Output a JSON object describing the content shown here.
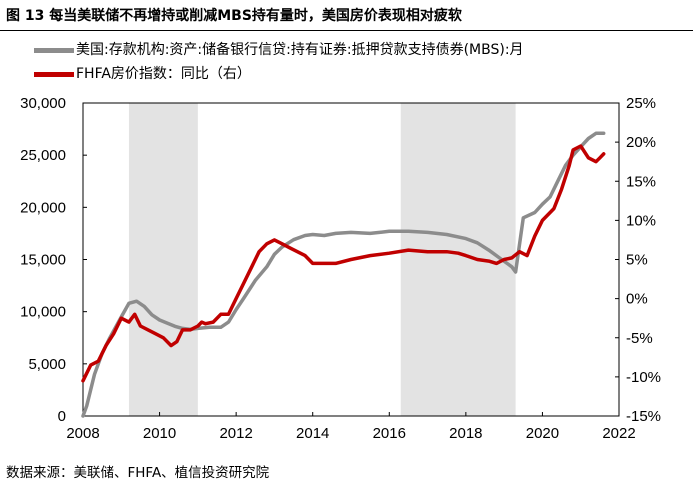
{
  "title": "图 13 每当美联储不再增持或削减MBS持有量时，美国房价表现相对疲软",
  "source": "数据来源：美联储、FHFA、植信投资研究院",
  "colors": {
    "mbs": "#8c8c8c",
    "fhfa": "#c00000",
    "recession_shading": "#e3e3e3"
  },
  "chart_data": {
    "type": "line",
    "title": "图 13 每当美联储不再增持或削减MBS持有量时，美国房价表现相对疲软",
    "x_ticks": [
      "2008",
      "2010",
      "2012",
      "2014",
      "2016",
      "2018",
      "2020",
      "2022"
    ],
    "xlim": [
      2008,
      2022
    ],
    "y_left": {
      "lim": [
        0,
        30000
      ],
      "ticks": [
        "0",
        "5,000",
        "10,000",
        "15,000",
        "20,000",
        "25,000",
        "30,000"
      ]
    },
    "y_right": {
      "lim": [
        -15,
        25
      ],
      "ticks": [
        "-15%",
        "-10%",
        "-5%",
        "0%",
        "5%",
        "10%",
        "15%",
        "20%",
        "25%"
      ]
    },
    "shaded_periods": [
      [
        2009.2,
        2011.0
      ],
      [
        2016.3,
        2019.3
      ]
    ],
    "series": [
      {
        "name": "美国:存款机构:资产:储备银行信贷:持有证券:抵押贷款支持债券(MBS):月",
        "axis": "left",
        "color": "#8c8c8c",
        "x": [
          2008.0,
          2008.1,
          2008.3,
          2008.5,
          2008.7,
          2009.0,
          2009.2,
          2009.4,
          2009.6,
          2009.8,
          2010.0,
          2010.2,
          2010.4,
          2010.6,
          2010.8,
          2011.0,
          2011.3,
          2011.6,
          2011.8,
          2012.0,
          2012.2,
          2012.5,
          2012.8,
          2013.0,
          2013.2,
          2013.5,
          2013.8,
          2014.0,
          2014.3,
          2014.6,
          2015.0,
          2015.5,
          2016.0,
          2016.5,
          2017.0,
          2017.5,
          2018.0,
          2018.3,
          2018.6,
          2018.9,
          2019.2,
          2019.3,
          2019.5,
          2019.8,
          2020.0,
          2020.2,
          2020.4,
          2020.6,
          2020.8,
          2021.0,
          2021.2,
          2021.4,
          2021.6
        ],
        "values": [
          0,
          1000,
          4000,
          6000,
          7500,
          9500,
          10800,
          11000,
          10500,
          9700,
          9200,
          8900,
          8600,
          8400,
          8300,
          8400,
          8500,
          8500,
          9000,
          10200,
          11300,
          13000,
          14300,
          15500,
          16200,
          16900,
          17300,
          17400,
          17300,
          17500,
          17600,
          17500,
          17700,
          17700,
          17600,
          17400,
          17000,
          16600,
          15900,
          15100,
          14300,
          13800,
          19000,
          19500,
          20300,
          21000,
          22500,
          24000,
          25000,
          25800,
          26600,
          27100,
          27100
        ]
      },
      {
        "name": "FHFA房价指数：同比（右）",
        "axis": "right",
        "color": "#c00000",
        "x": [
          2008.0,
          2008.2,
          2008.4,
          2008.6,
          2008.8,
          2009.0,
          2009.2,
          2009.35,
          2009.5,
          2009.7,
          2009.9,
          2010.1,
          2010.3,
          2010.45,
          2010.6,
          2010.8,
          2011.0,
          2011.1,
          2011.2,
          2011.4,
          2011.6,
          2011.8,
          2011.9,
          2012.0,
          2012.2,
          2012.4,
          2012.6,
          2012.8,
          2013.0,
          2013.2,
          2013.4,
          2013.6,
          2013.8,
          2014.0,
          2014.3,
          2014.6,
          2015.0,
          2015.5,
          2016.0,
          2016.5,
          2017.0,
          2017.5,
          2017.8,
          2018.0,
          2018.3,
          2018.6,
          2018.8,
          2019.0,
          2019.2,
          2019.4,
          2019.6,
          2019.8,
          2020.0,
          2020.3,
          2020.5,
          2020.7,
          2020.8,
          2021.0,
          2021.2,
          2021.4,
          2021.5,
          2021.6
        ],
        "values": [
          -10.5,
          -8.5,
          -8.0,
          -6.0,
          -4.5,
          -2.5,
          -3.0,
          -2.0,
          -3.5,
          -4.0,
          -4.5,
          -5.0,
          -6.0,
          -5.5,
          -4.0,
          -4.0,
          -3.5,
          -3.0,
          -3.2,
          -3.0,
          -2.0,
          -2.0,
          -1.0,
          0.0,
          2.0,
          4.0,
          6.0,
          7.0,
          7.5,
          7.0,
          6.5,
          6.0,
          5.5,
          4.5,
          4.5,
          4.5,
          5.0,
          5.5,
          5.8,
          6.2,
          6.0,
          6.0,
          5.8,
          5.5,
          5.0,
          4.8,
          4.5,
          5.0,
          5.2,
          6.0,
          5.5,
          8.0,
          10.0,
          11.5,
          14.0,
          17.0,
          19.0,
          19.5,
          18.0,
          17.5,
          18.0,
          18.5
        ]
      }
    ]
  }
}
